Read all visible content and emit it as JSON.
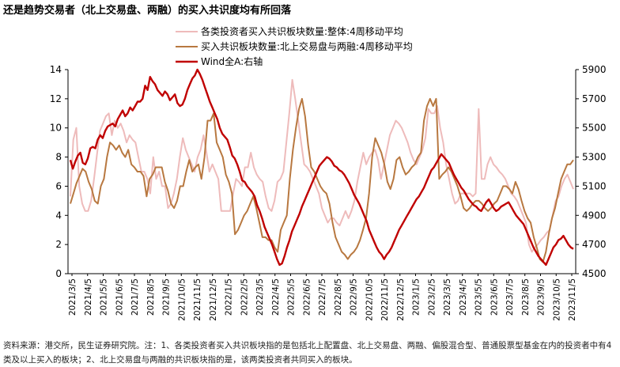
{
  "title": "还是趋势交易者（北上交易盘、两融）的买入共识度均有所回落",
  "source": "资料来源：港交所，民生证券研究院。注：1、各类投资者买入共识板块指的是包括北上配置盘、北上交易盘、两融、偏股混合型、普通股票型基金在内的投资者中有4类及以上买入的板块；2、北上交易盘与两融的共识板块指的是，该两类投资者共同买入的板块。",
  "colors": {
    "all": "#eebbbb",
    "trend": "#b87840",
    "wind": "#c00000"
  },
  "chart_data": {
    "type": "line",
    "x_tick_labels": [
      "2021/3/5",
      "2021/4/5",
      "2021/5/5",
      "2021/6/5",
      "2021/7/5",
      "2021/8/5",
      "2021/9/5",
      "2021/10/5",
      "2021/11/5",
      "2021/12/5",
      "2022/1/5",
      "2022/2/5",
      "2022/3/5",
      "2022/4/5",
      "2022/5/5",
      "2022/6/5",
      "2022/7/5",
      "2022/8/5",
      "2022/9/5",
      "2022/10/5",
      "2022/11/5",
      "2022/12/5",
      "2023/1/5",
      "2023/2/5",
      "2023/3/5",
      "2023/4/5",
      "2023/5/5",
      "2023/6/5",
      "2023/7/5",
      "2023/8/5",
      "2023/9/5",
      "2023/10/5",
      "2023/11/5"
    ],
    "y_left": {
      "ticks": [
        "0",
        "2",
        "4",
        "6",
        "8",
        "10",
        "12",
        "14"
      ],
      "min": 0,
      "max": 14
    },
    "y_right": {
      "ticks": [
        "4500",
        "4700",
        "4900",
        "5100",
        "5300",
        "5500",
        "5700",
        "5900"
      ],
      "min": 4500,
      "max": 5900
    },
    "series": [
      {
        "name": "各类投资者买入共识板块数量:整体:4周移动平均",
        "axis": "left",
        "values": [
          5.3,
          9.2,
          10.0,
          6.0,
          4.8,
          4.3,
          4.3,
          5.0,
          6.5,
          8.2,
          9.8,
          10.3,
          10.8,
          11.0,
          9.5,
          10.5,
          10.0,
          10.3,
          9.8,
          9.0,
          9.5,
          9.2,
          9.0,
          8.0,
          7.0,
          7.0,
          6.5,
          5.5,
          8.0,
          6.5,
          7.0,
          6.0,
          6.0,
          4.5,
          4.8,
          5.5,
          6.5,
          8.0,
          9.3,
          8.5,
          8.0,
          7.5,
          7.0,
          8.0,
          8.5,
          9.5,
          8.3,
          7.0,
          7.5,
          7.0,
          6.5,
          4.3,
          4.3,
          4.3,
          4.3,
          5.5,
          6.5,
          6.3,
          6.0,
          7.3,
          7.3,
          8.3,
          7.3,
          6.8,
          6.5,
          6.3,
          5.3,
          4.5,
          4.3,
          5.0,
          6.3,
          6.5,
          7.0,
          9.0,
          11.0,
          13.3,
          12.0,
          10.5,
          9.0,
          7.5,
          7.3,
          7.0,
          6.5,
          6.0,
          5.5,
          4.5,
          4.0,
          3.5,
          3.8,
          3.8,
          3.5,
          3.3,
          3.8,
          4.3,
          3.8,
          4.3,
          5.0,
          6.3,
          7.3,
          8.3,
          7.5,
          8.0,
          8.3,
          8.5,
          7.8,
          6.5,
          7.5,
          8.5,
          9.5,
          10.0,
          10.5,
          10.3,
          10.0,
          9.5,
          9.0,
          8.3,
          7.8,
          7.5,
          8.0,
          8.5,
          9.3,
          11.3,
          11.0,
          11.0,
          11.5,
          10.0,
          9.0,
          7.5,
          6.5,
          5.5,
          4.8,
          5.0,
          5.5,
          5.5,
          5.5,
          5.5,
          5.3,
          5.5,
          11.3,
          6.5,
          6.5,
          7.5,
          8.0,
          7.5,
          7.3,
          7.0,
          6.8,
          6.5,
          6.0,
          5.5,
          5.3,
          5.0,
          4.5,
          4.0,
          3.5,
          2.0,
          1.5,
          1.8,
          2.0,
          2.3,
          2.5,
          2.8,
          3.0,
          4.0,
          5.0,
          5.3,
          6.0,
          6.5,
          6.8,
          6.3,
          5.8
        ]
      },
      {
        "name": "买入共识板块数量:北上交易盘与两融:4周移动平均",
        "axis": "left",
        "values": [
          4.8,
          5.5,
          6.2,
          6.7,
          7.2,
          7.0,
          6.3,
          5.8,
          5.0,
          4.8,
          6.0,
          6.5,
          8.0,
          9.0,
          8.8,
          8.5,
          8.8,
          8.3,
          8.0,
          8.5,
          7.5,
          7.3,
          7.0,
          7.0,
          6.7,
          5.3,
          6.5,
          6.8,
          7.3,
          7.3,
          7.3,
          6.3,
          5.7,
          4.8,
          4.5,
          5.0,
          6.0,
          6.0,
          7.0,
          7.8,
          7.0,
          7.3,
          7.5,
          6.5,
          8.0,
          10.5,
          10.5,
          11.0,
          9.0,
          8.5,
          8.0,
          6.8,
          6.3,
          5.5,
          2.7,
          3.0,
          3.5,
          4.0,
          4.3,
          4.8,
          5.3,
          4.5,
          3.5,
          2.5,
          2.5,
          2.3,
          2.3,
          1.8,
          1.5,
          3.0,
          3.5,
          4.0,
          6.5,
          8.5,
          10.0,
          11.3,
          12.0,
          10.8,
          8.8,
          7.3,
          7.0,
          6.5,
          6.0,
          5.7,
          5.5,
          4.8,
          3.5,
          2.5,
          2.0,
          1.5,
          1.3,
          1.0,
          1.3,
          1.5,
          1.8,
          2.3,
          3.0,
          3.8,
          5.5,
          8.0,
          9.3,
          8.8,
          8.3,
          7.5,
          6.3,
          5.8,
          6.5,
          7.8,
          8.0,
          7.3,
          6.8,
          7.0,
          7.3,
          7.5,
          8.0,
          8.3,
          10.5,
          11.5,
          12.0,
          11.5,
          12.0,
          6.5,
          6.8,
          7.0,
          7.3,
          7.0,
          6.5,
          6.0,
          5.3,
          4.5,
          4.3,
          4.5,
          4.8,
          5.0,
          5.0,
          4.8,
          4.5,
          4.3,
          4.5,
          4.8,
          5.0,
          5.5,
          6.0,
          6.0,
          5.8,
          5.5,
          6.3,
          5.8,
          5.0,
          4.3,
          3.8,
          3.5,
          2.5,
          1.8,
          1.0,
          0.8,
          1.5,
          2.8,
          3.8,
          4.5,
          5.5,
          6.5,
          7.0,
          7.5,
          7.5,
          7.8
        ]
      },
      {
        "name": "Wind全A:右轴",
        "axis": "right",
        "values": [
          5280,
          5220,
          5270,
          5310,
          5330,
          5260,
          5250,
          5290,
          5360,
          5370,
          5360,
          5420,
          5450,
          5430,
          5480,
          5510,
          5520,
          5530,
          5510,
          5560,
          5590,
          5620,
          5580,
          5600,
          5640,
          5620,
          5650,
          5680,
          5680,
          5700,
          5790,
          5760,
          5850,
          5820,
          5800,
          5760,
          5740,
          5720,
          5750,
          5730,
          5690,
          5710,
          5730,
          5670,
          5650,
          5660,
          5700,
          5760,
          5800,
          5840,
          5860,
          5900,
          5870,
          5830,
          5780,
          5730,
          5680,
          5640,
          5600,
          5560,
          5500,
          5460,
          5440,
          5420,
          5370,
          5310,
          5290,
          5250,
          5200,
          5140,
          5130,
          5100,
          5080,
          5060,
          5030,
          4970,
          4930,
          4880,
          4820,
          4780,
          4740,
          4700,
          4650,
          4600,
          4560,
          4570,
          4620,
          4680,
          4730,
          4790,
          4830,
          4870,
          4910,
          4960,
          5000,
          5040,
          5080,
          5120,
          5160,
          5200,
          5240,
          5260,
          5280,
          5300,
          5290,
          5270,
          5240,
          5230,
          5210,
          5200,
          5180,
          5150,
          5120,
          5080,
          5040,
          5010,
          4980,
          4940,
          4900,
          4860,
          4800,
          4760,
          4720,
          4680,
          4650,
          4630,
          4600,
          4630,
          4650,
          4680,
          4720,
          4760,
          4800,
          4830,
          4860,
          4890,
          4920,
          4950,
          4980,
          5010,
          5030,
          5060,
          5090,
          5130,
          5170,
          5210,
          5230,
          5260,
          5290,
          5320,
          5300,
          5280,
          5260,
          5220,
          5180,
          5150,
          5120,
          5090,
          5070,
          5040,
          5010,
          4990,
          4970,
          4960,
          4940,
          4930,
          4960,
          4990,
          5010,
          4980,
          4950,
          4930,
          4940,
          4960,
          4970,
          4980,
          4990,
          4960,
          4930,
          4900,
          4880,
          4860,
          4840,
          4800,
          4760,
          4720,
          4680,
          4650,
          4620,
          4600,
          4580,
          4560,
          4600,
          4640,
          4680,
          4700,
          4730,
          4740,
          4760,
          4730,
          4700,
          4680,
          4670
        ]
      }
    ]
  }
}
